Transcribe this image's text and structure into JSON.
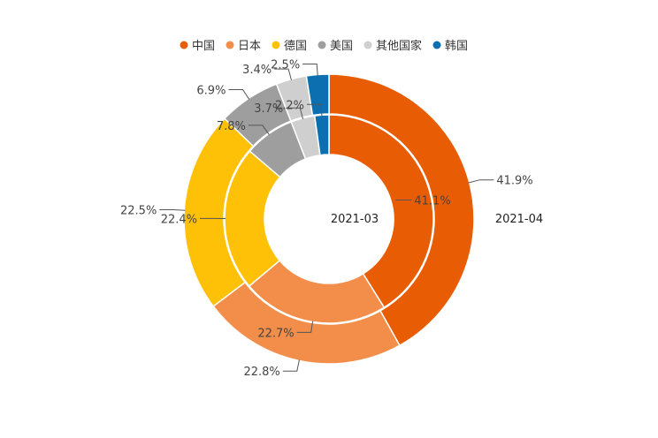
{
  "chart_data": {
    "type": "pie",
    "subtype": "nested-donut",
    "legend_placement": "top",
    "categories": [
      "中国",
      "日本",
      "德国",
      "美国",
      "其他国家",
      "韩国"
    ],
    "colors": [
      "#e85d04",
      "#f28e4a",
      "#ffc107",
      "#9e9e9e",
      "#cfcfcf",
      "#0b6fb0"
    ],
    "series": [
      {
        "name": "2021-03",
        "ring": "inner",
        "values": [
          41.1,
          22.7,
          22.4,
          7.8,
          3.7,
          2.2
        ],
        "labels": [
          "41.1%",
          "22.7%",
          "22.4%",
          "7.8%",
          "3.7%",
          "2.2%"
        ]
      },
      {
        "name": "2021-04",
        "ring": "outer",
        "values": [
          41.9,
          22.8,
          22.5,
          6.9,
          3.4,
          2.5
        ],
        "labels": [
          "41.9%",
          "22.8%",
          "22.5%",
          "6.9%",
          "3.4%",
          "2.5%"
        ]
      }
    ]
  }
}
